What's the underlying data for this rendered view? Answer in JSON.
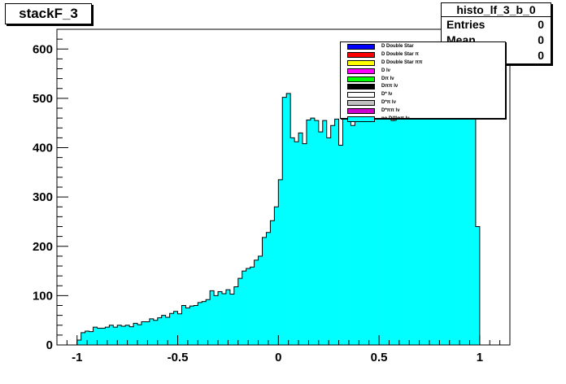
{
  "title_box": {
    "text": "stackF_3"
  },
  "stats": {
    "name": "histo_lf_3_b_0",
    "rows": [
      {
        "key": "Entries",
        "value": "0"
      },
      {
        "key": "Mean",
        "value": "0"
      },
      {
        "key": "RMS",
        "value": "0"
      }
    ]
  },
  "legend": {
    "entries": [
      {
        "label": "D Double Star",
        "color": "#0000ff"
      },
      {
        "label": "D Double Star π",
        "color": "#ff0000"
      },
      {
        "label": "D Double Star ππ",
        "color": "#ffff00"
      },
      {
        "label": "D lν",
        "color": "#ff00ff"
      },
      {
        "label": "Dπ lν",
        "color": "#00ff00"
      },
      {
        "label": "Dππ lν",
        "color": "#000000"
      },
      {
        "label": "D* lν",
        "color": "#ffffff"
      },
      {
        "label": "D*π lν",
        "color": "#c0c0c0"
      },
      {
        "label": "D*ππ lν",
        "color": "#cc00cc"
      },
      {
        "label": "no D(*)nπ lν",
        "color": "#00ffff"
      }
    ]
  },
  "chart_data": {
    "type": "bar",
    "title": "",
    "xlabel": "",
    "ylabel": "",
    "xlim": [
      -1.1,
      1.15
    ],
    "ylim": [
      0,
      640
    ],
    "xticks": [
      "-1",
      "-0.5",
      "0",
      "0.5",
      "1"
    ],
    "xtick_values": [
      -1,
      -0.5,
      0,
      0.5,
      1
    ],
    "yticks": [
      "0",
      "100",
      "200",
      "300",
      "400",
      "500",
      "600"
    ],
    "ytick_values": [
      0,
      100,
      200,
      300,
      400,
      500,
      600
    ],
    "grid": false,
    "fill_color": "#00ffff",
    "bin_edges_start": -1.0,
    "bin_width": 0.02,
    "series": [
      {
        "name": "no D(*)nπ lν",
        "values": [
          10,
          25,
          28,
          27,
          36,
          34,
          34,
          36,
          40,
          36,
          40,
          38,
          40,
          37,
          44,
          41,
          47,
          47,
          53,
          50,
          55,
          60,
          56,
          64,
          68,
          63,
          80,
          75,
          79,
          80,
          86,
          88,
          92,
          110,
          100,
          108,
          104,
          112,
          103,
          118,
          135,
          150,
          155,
          158,
          172,
          180,
          218,
          228,
          252,
          280,
          335,
          502,
          510,
          420,
          412,
          430,
          408,
          456,
          460,
          455,
          432,
          455,
          420,
          445,
          458,
          405,
          460,
          462,
          445,
          470,
          470,
          460,
          465,
          470,
          475,
          462,
          470,
          475,
          455,
          468,
          460,
          470,
          465,
          472,
          470,
          468,
          468,
          470,
          472,
          470,
          468,
          470,
          466,
          468,
          470,
          470,
          472,
          470,
          470,
          240
        ]
      }
    ]
  }
}
